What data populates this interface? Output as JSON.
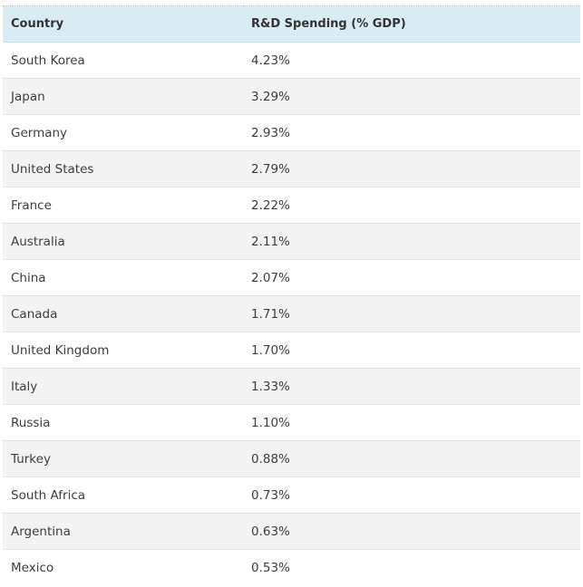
{
  "table": {
    "headers": {
      "country": "Country",
      "spending": "R&D Spending (% GDP)"
    },
    "rows": [
      {
        "country": "South Korea",
        "spending": "4.23%"
      },
      {
        "country": "Japan",
        "spending": "3.29%"
      },
      {
        "country": "Germany",
        "spending": "2.93%"
      },
      {
        "country": "United States",
        "spending": "2.79%"
      },
      {
        "country": "France",
        "spending": "2.22%"
      },
      {
        "country": "Australia",
        "spending": "2.11%"
      },
      {
        "country": "China",
        "spending": "2.07%"
      },
      {
        "country": "Canada",
        "spending": "1.71%"
      },
      {
        "country": "United Kingdom",
        "spending": "1.70%"
      },
      {
        "country": "Italy",
        "spending": "1.33%"
      },
      {
        "country": "Russia",
        "spending": "1.10%"
      },
      {
        "country": "Turkey",
        "spending": "0.88%"
      },
      {
        "country": "South Africa",
        "spending": "0.73%"
      },
      {
        "country": "Argentina",
        "spending": "0.63%"
      },
      {
        "country": "Mexico",
        "spending": "0.53%"
      }
    ]
  },
  "colors": {
    "header_bg": "#d9ecf3",
    "alt_row_bg": "#f3f3f3",
    "border": "#e3e3e3"
  }
}
